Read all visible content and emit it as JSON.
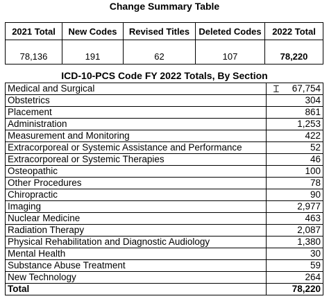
{
  "summary": {
    "title": "Change Summary Table",
    "headers": [
      "2021 Total",
      "New Codes",
      "Revised Titles",
      "Deleted Codes",
      "2022 Total"
    ],
    "values": [
      "78,136",
      "191",
      "62",
      "107",
      "78,220"
    ]
  },
  "sections": {
    "title": "ICD-10-PCS Code FY 2022 Totals, By Section",
    "rows": [
      {
        "name": "Medical and Surgical",
        "value": "67,754"
      },
      {
        "name": "Obstetrics",
        "value": "304"
      },
      {
        "name": "Placement",
        "value": "861"
      },
      {
        "name": "Administration",
        "value": "1,253"
      },
      {
        "name": "Measurement and Monitoring",
        "value": "422"
      },
      {
        "name": "Extracorporeal or Systemic Assistance and Performance",
        "value": "52"
      },
      {
        "name": "Extracorporeal or Systemic Therapies",
        "value": "46"
      },
      {
        "name": "Osteopathic",
        "value": "100"
      },
      {
        "name": "Other Procedures",
        "value": "78"
      },
      {
        "name": "Chiropractic",
        "value": "90"
      },
      {
        "name": "Imaging",
        "value": "2,977"
      },
      {
        "name": "Nuclear Medicine",
        "value": "463"
      },
      {
        "name": "Radiation Therapy",
        "value": "2,087"
      },
      {
        "name": "Physical Rehabilitation and Diagnostic Audiology",
        "value": "1,380"
      },
      {
        "name": "Mental Health",
        "value": "30"
      },
      {
        "name": "Substance Abuse Treatment",
        "value": "59"
      },
      {
        "name": "New Technology",
        "value": "264"
      }
    ],
    "total": {
      "name": "Total",
      "value": "78,220"
    }
  }
}
